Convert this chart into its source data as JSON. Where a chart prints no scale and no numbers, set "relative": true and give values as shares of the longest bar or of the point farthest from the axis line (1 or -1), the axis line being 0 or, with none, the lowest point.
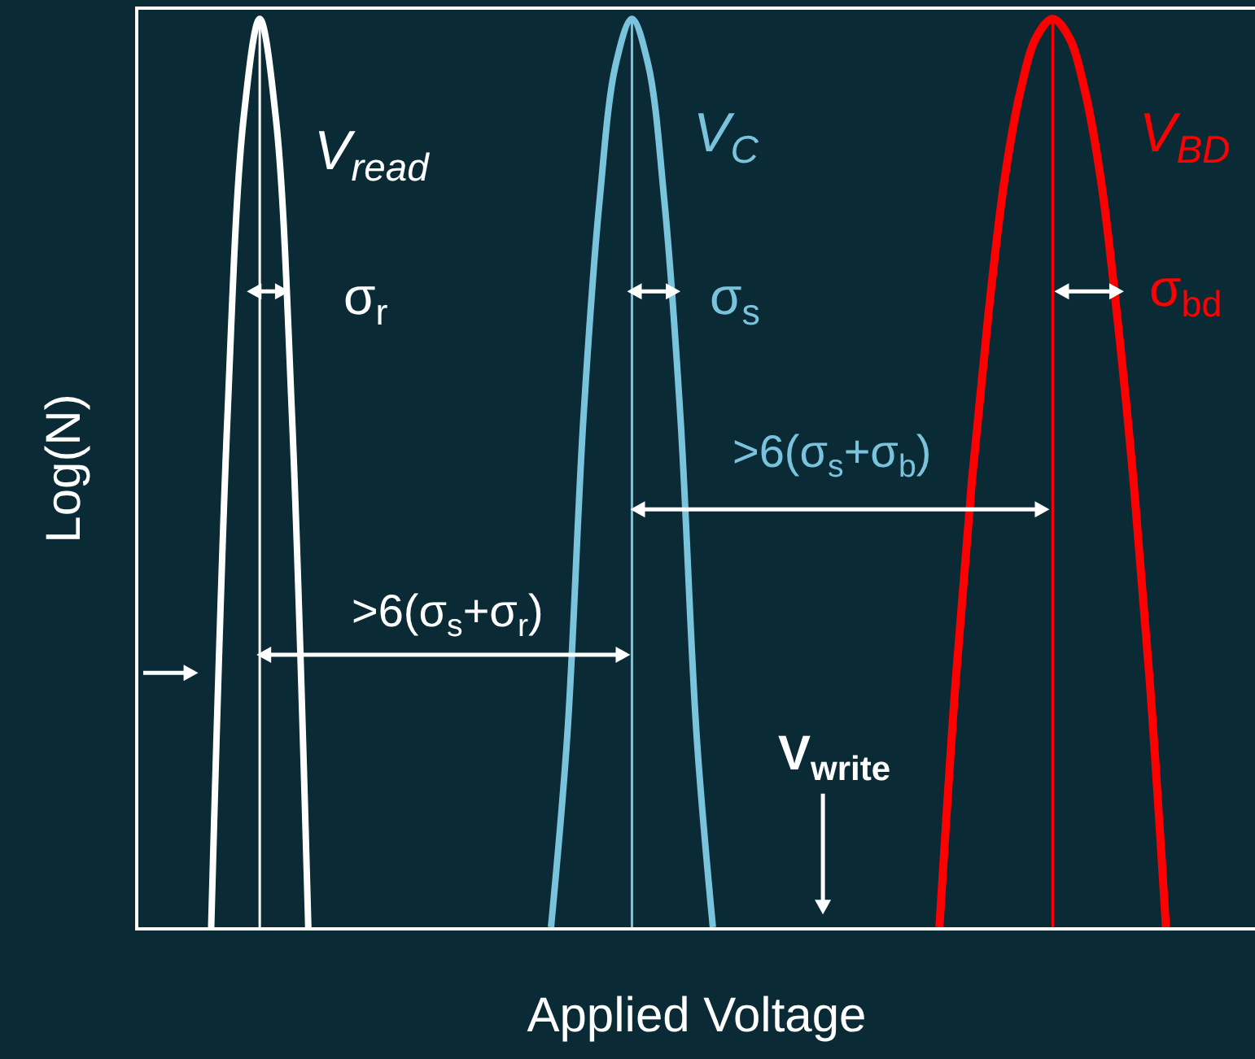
{
  "chart_data": {
    "type": "line",
    "relative": true,
    "xlabel": "Applied Voltage",
    "ylabel": "Log(N)",
    "categories": [
      null,
      null,
      null,
      null,
      null,
      null,
      null,
      null,
      null,
      null,
      null,
      null,
      null,
      null,
      null,
      null,
      null,
      null,
      null,
      null,
      null,
      null,
      null,
      null,
      null,
      null,
      null,
      null,
      null,
      null,
      null,
      null,
      null,
      null,
      null,
      null,
      null,
      null,
      null,
      null,
      null,
      null,
      null,
      null,
      null,
      null,
      null,
      null,
      null,
      null,
      null,
      null,
      null,
      null,
      null,
      null,
      null,
      null,
      null,
      null,
      null,
      null,
      null,
      null,
      null,
      null,
      null,
      null,
      null
    ],
    "series": [
      {
        "name": "V$_{read}$",
        "color": "#ffffff",
        "values": [
          null,
          null,
          null,
          null,
          0,
          0.56,
          0.89,
          1,
          0.89,
          0.56,
          0,
          null,
          null,
          null,
          null,
          null,
          null,
          null,
          null,
          null,
          null,
          null,
          null,
          null,
          null,
          null,
          null,
          null,
          null,
          null,
          null,
          null,
          null,
          null,
          null,
          null,
          null,
          null,
          null,
          null,
          null,
          null,
          null,
          null,
          null,
          null,
          null,
          null,
          null,
          null,
          null,
          null,
          null,
          null,
          null,
          null,
          null,
          null,
          null,
          null,
          null,
          null,
          null,
          null,
          null,
          null,
          null,
          null,
          null
        ]
      },
      {
        "name": "V$_{C}$",
        "color": "#7ac3dd",
        "values": [
          null,
          null,
          null,
          null,
          null,
          null,
          null,
          null,
          null,
          null,
          null,
          null,
          null,
          null,
          null,
          null,
          null,
          null,
          null,
          null,
          null,
          null,
          null,
          null,
          null,
          0,
          0.21,
          0.56,
          0.8,
          0.95,
          1,
          0.95,
          0.8,
          0.56,
          0.21,
          0,
          null,
          null,
          null,
          null,
          null,
          null,
          null,
          null,
          null,
          null,
          null,
          null,
          null,
          null,
          null,
          null,
          null,
          null,
          null,
          null,
          null,
          null,
          null,
          null,
          null,
          null,
          null,
          null,
          null,
          null,
          null,
          null,
          null
        ]
      },
      {
        "name": "V$_{BD}$",
        "color": "#ff0000",
        "values": [
          null,
          null,
          null,
          null,
          null,
          null,
          null,
          null,
          null,
          null,
          null,
          null,
          null,
          null,
          null,
          null,
          null,
          null,
          null,
          null,
          null,
          null,
          null,
          null,
          null,
          null,
          null,
          null,
          null,
          null,
          null,
          null,
          null,
          null,
          null,
          null,
          null,
          null,
          null,
          null,
          null,
          null,
          null,
          null,
          null,
          null,
          null,
          null,
          null,
          0,
          0.27,
          0.49,
          0.67,
          0.82,
          0.92,
          0.98,
          1,
          0.98,
          0.92,
          0.82,
          0.67,
          0.49,
          0.27,
          0,
          null,
          null,
          null,
          null,
          null
        ]
      }
    ],
    "annotations": [
      "σ$_{r}$",
      "σ$_{s}$",
      "σ$_{bd}$",
      ">6(σ$_{s}$+σ$_{r}$)",
      ">6(σ$_{s}$+σ$_{b}$)",
      "V$_{write}$"
    ],
    "line_style": "solid",
    "marker": "none",
    "legend": false
  }
}
